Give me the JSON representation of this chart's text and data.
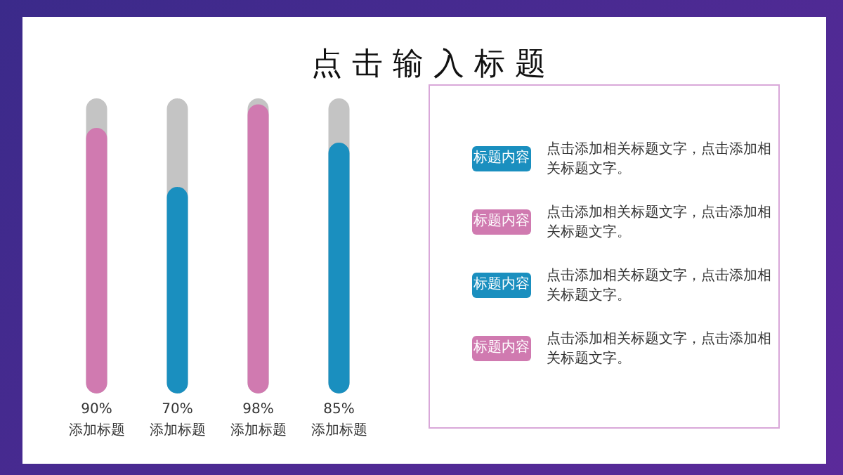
{
  "chart_data": [
    {
      "type": "bar",
      "title": "点 击 输 入 标 题",
      "categories": [
        "添加标题",
        "添加标题",
        "添加标题",
        "添加标题"
      ],
      "values": [
        90,
        70,
        98,
        85
      ],
      "colors": [
        "#d07ab0",
        "#1a8fbf",
        "#d07ab0",
        "#1a8fbf"
      ],
      "value_labels": [
        "90%",
        "70%",
        "98%",
        "85%"
      ],
      "ylim": [
        0,
        100
      ],
      "tick_labels": "x"
    },
    {
      "type": "other",
      "categories": [
        "标题内容",
        "标题内容",
        "标题内容",
        "标题内容"
      ],
      "colors": [
        "#1a8fbf",
        "#d07ab0",
        "#1a8fbf",
        "#d07ab0"
      ],
      "annotations": [
        "点击添加相关标题文字，点击添加相关标题文字。",
        "点击添加相关标题文字，点击添加相关标题文字。",
        "点击添加相关标题文字，点击添加相关标题文字。",
        "点击添加相关标题文字，点击添加相关标题文字。"
      ]
    }
  ]
}
